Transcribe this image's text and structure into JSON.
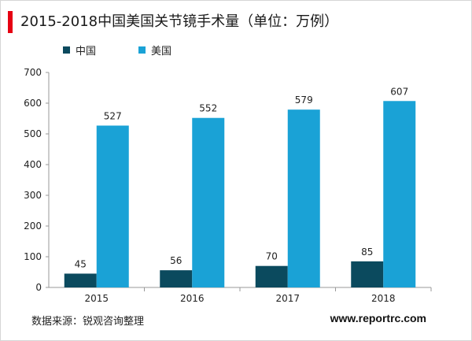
{
  "title": "2015-2018中国美国关节镜手术量（单位：万例）",
  "source": "数据来源：锐观咨询整理",
  "brand": "www.reportrc.com",
  "colors": {
    "accent": "#e60012",
    "china": "#0b4a5e",
    "usa": "#1aa2d6"
  },
  "chart_data": {
    "type": "bar",
    "title": "2015-2018中国美国关节镜手术量（单位：万例）",
    "categories": [
      "2015",
      "2016",
      "2017",
      "2018"
    ],
    "series": [
      {
        "name": "中国",
        "values": [
          45,
          56,
          70,
          85
        ]
      },
      {
        "name": "美国",
        "values": [
          527,
          552,
          579,
          607
        ]
      }
    ],
    "ylim": [
      0,
      700
    ],
    "yticks": [
      0,
      100,
      200,
      300,
      400,
      500,
      600,
      700
    ],
    "grid": false,
    "legend_position": "top-left"
  }
}
